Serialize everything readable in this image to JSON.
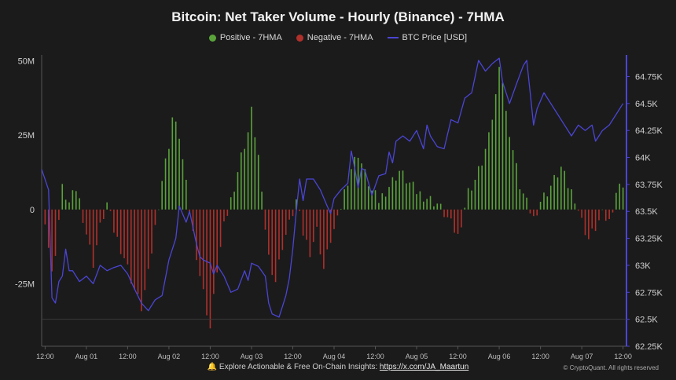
{
  "chart_data": {
    "type": "bar",
    "title": "Bitcoin: Net Taker Volume - Hourly (Binance) - 7HMA",
    "y_left_ticks": [
      "50M",
      "25M",
      "0",
      "-25M"
    ],
    "y_left_tick_values": [
      50000000,
      25000000,
      0,
      -25000000
    ],
    "y_right_ticks": [
      "64.75K",
      "64.5K",
      "64.25K",
      "64K",
      "63.75K",
      "63.5K",
      "63.25K",
      "63K",
      "62.75K",
      "62.5K",
      "62.25K"
    ],
    "y_right_tick_values": [
      64750,
      64500,
      64250,
      64000,
      63750,
      63500,
      63250,
      63000,
      62750,
      62500,
      62250
    ],
    "x_ticks": [
      "12:00",
      "Aug 01",
      "12:00",
      "Aug 02",
      "12:00",
      "Aug 03",
      "12:00",
      "Aug 04",
      "12:00",
      "Aug 05",
      "12:00",
      "Aug 06",
      "12:00",
      "Aug 07",
      "12:00"
    ],
    "x_tick_hours": [
      0,
      12,
      24,
      36,
      48,
      60,
      72,
      84,
      96,
      108,
      120,
      132,
      144,
      156,
      168
    ],
    "x_range_hours": [
      -1,
      169
    ],
    "ylim_left": [
      -46000000,
      52000000
    ],
    "ylim_right": [
      62250,
      64950
    ],
    "grid": false,
    "legend_position": "top-center",
    "series": [
      {
        "name": "Positive - 7HMA",
        "color": "#5aa33b"
      },
      {
        "name": "Negative - 7HMA",
        "color": "#b0302b"
      },
      {
        "name": "BTC Price [USD]",
        "color": "#4b45d6"
      }
    ],
    "net_volume_keypoints": [
      [
        0,
        -3000000
      ],
      [
        2,
        -22000000
      ],
      [
        3,
        -14000000
      ],
      [
        5,
        7000000
      ],
      [
        7,
        2000000
      ],
      [
        9,
        7000000
      ],
      [
        10,
        3000000
      ],
      [
        12,
        -8000000
      ],
      [
        14,
        -18000000
      ],
      [
        16,
        -6000000
      ],
      [
        18,
        2000000
      ],
      [
        20,
        -7000000
      ],
      [
        23,
        -16000000
      ],
      [
        26,
        -27000000
      ],
      [
        28,
        -33000000
      ],
      [
        30,
        -22000000
      ],
      [
        32,
        -6000000
      ],
      [
        34,
        10000000
      ],
      [
        36,
        22000000
      ],
      [
        37,
        31000000
      ],
      [
        39,
        25000000
      ],
      [
        41,
        8000000
      ],
      [
        43,
        -8000000
      ],
      [
        45,
        -22000000
      ],
      [
        47,
        -34000000
      ],
      [
        48,
        -40000000
      ],
      [
        50,
        -20000000
      ],
      [
        52,
        -6000000
      ],
      [
        55,
        8000000
      ],
      [
        57,
        18000000
      ],
      [
        59,
        26000000
      ],
      [
        60,
        33000000
      ],
      [
        62,
        18000000
      ],
      [
        63,
        4000000
      ],
      [
        65,
        -16000000
      ],
      [
        67,
        -24000000
      ],
      [
        69,
        -12000000
      ],
      [
        71,
        -5000000
      ],
      [
        73,
        3000000
      ],
      [
        75,
        -8000000
      ],
      [
        77,
        -14000000
      ],
      [
        79,
        -7000000
      ],
      [
        81,
        -20000000
      ],
      [
        83,
        -10000000
      ],
      [
        85,
        -4000000
      ],
      [
        87,
        6000000
      ],
      [
        89,
        14000000
      ],
      [
        91,
        19000000
      ],
      [
        93,
        12000000
      ],
      [
        95,
        6000000
      ],
      [
        97,
        3000000
      ],
      [
        100,
        8000000
      ],
      [
        103,
        13000000
      ],
      [
        105,
        10000000
      ],
      [
        108,
        6000000
      ],
      [
        111,
        4000000
      ],
      [
        114,
        2000000
      ],
      [
        117,
        -3000000
      ],
      [
        120,
        -9000000
      ],
      [
        123,
        6000000
      ],
      [
        125,
        10000000
      ],
      [
        127,
        16000000
      ],
      [
        129,
        24000000
      ],
      [
        131,
        38000000
      ],
      [
        132,
        50000000
      ],
      [
        133,
        43000000
      ],
      [
        134,
        32000000
      ],
      [
        136,
        20000000
      ],
      [
        138,
        8000000
      ],
      [
        140,
        2000000
      ],
      [
        142,
        -3000000
      ],
      [
        144,
        3000000
      ],
      [
        146,
        6000000
      ],
      [
        148,
        10000000
      ],
      [
        150,
        14000000
      ],
      [
        152,
        8000000
      ],
      [
        154,
        4000000
      ],
      [
        156,
        -4000000
      ],
      [
        158,
        -10000000
      ],
      [
        160,
        -6000000
      ],
      [
        162,
        -2000000
      ],
      [
        164,
        -4000000
      ],
      [
        166,
        6000000
      ],
      [
        168,
        9000000
      ]
    ],
    "btc_price_keypoints": [
      [
        -1,
        63890
      ],
      [
        1,
        63700
      ],
      [
        2,
        62700
      ],
      [
        3,
        62650
      ],
      [
        4,
        62850
      ],
      [
        5,
        62900
      ],
      [
        6,
        63150
      ],
      [
        7,
        62950
      ],
      [
        8,
        62950
      ],
      [
        10,
        62850
      ],
      [
        12,
        62900
      ],
      [
        14,
        62830
      ],
      [
        16,
        63000
      ],
      [
        18,
        62950
      ],
      [
        20,
        62980
      ],
      [
        22,
        63000
      ],
      [
        24,
        62920
      ],
      [
        26,
        62780
      ],
      [
        28,
        62650
      ],
      [
        30,
        62580
      ],
      [
        32,
        62680
      ],
      [
        34,
        62720
      ],
      [
        36,
        63050
      ],
      [
        38,
        63250
      ],
      [
        39,
        63550
      ],
      [
        41,
        63400
      ],
      [
        42,
        63500
      ],
      [
        44,
        63200
      ],
      [
        45,
        63080
      ],
      [
        46,
        63050
      ],
      [
        48,
        63020
      ],
      [
        49,
        62920
      ],
      [
        50,
        63000
      ],
      [
        52,
        62900
      ],
      [
        54,
        62750
      ],
      [
        56,
        62780
      ],
      [
        58,
        62950
      ],
      [
        59,
        62860
      ],
      [
        60,
        63020
      ],
      [
        62,
        62990
      ],
      [
        64,
        62900
      ],
      [
        65,
        62650
      ],
      [
        66,
        62550
      ],
      [
        68,
        62520
      ],
      [
        69,
        62620
      ],
      [
        70,
        62720
      ],
      [
        71,
        62880
      ],
      [
        72,
        63150
      ],
      [
        73,
        63500
      ],
      [
        74,
        63800
      ],
      [
        75,
        63600
      ],
      [
        76,
        63800
      ],
      [
        78,
        63800
      ],
      [
        80,
        63700
      ],
      [
        82,
        63550
      ],
      [
        83,
        63480
      ],
      [
        84,
        63620
      ],
      [
        86,
        63700
      ],
      [
        88,
        63760
      ],
      [
        89,
        64060
      ],
      [
        90,
        63900
      ],
      [
        91,
        63720
      ],
      [
        92,
        63900
      ],
      [
        93,
        63880
      ],
      [
        95,
        63650
      ],
      [
        97,
        63830
      ],
      [
        99,
        63850
      ],
      [
        100,
        64050
      ],
      [
        101,
        63950
      ],
      [
        102,
        64150
      ],
      [
        104,
        64200
      ],
      [
        106,
        64150
      ],
      [
        108,
        64250
      ],
      [
        110,
        64080
      ],
      [
        111,
        64300
      ],
      [
        112,
        64200
      ],
      [
        114,
        64100
      ],
      [
        116,
        64080
      ],
      [
        118,
        64350
      ],
      [
        120,
        64320
      ],
      [
        122,
        64550
      ],
      [
        124,
        64600
      ],
      [
        126,
        64900
      ],
      [
        128,
        64800
      ],
      [
        130,
        64870
      ],
      [
        132,
        64920
      ],
      [
        133,
        64700
      ],
      [
        134,
        64600
      ],
      [
        135,
        64500
      ],
      [
        137,
        64680
      ],
      [
        139,
        64850
      ],
      [
        140,
        64900
      ],
      [
        141,
        64600
      ],
      [
        142,
        64300
      ],
      [
        143,
        64450
      ],
      [
        145,
        64600
      ],
      [
        147,
        64500
      ],
      [
        149,
        64400
      ],
      [
        151,
        64300
      ],
      [
        153,
        64200
      ],
      [
        155,
        64300
      ],
      [
        157,
        64250
      ],
      [
        159,
        64300
      ],
      [
        160,
        64150
      ],
      [
        162,
        64250
      ],
      [
        164,
        64300
      ],
      [
        166,
        64400
      ],
      [
        168,
        64500
      ]
    ]
  },
  "legend": {
    "positive": "Positive - 7HMA",
    "negative": "Negative - 7HMA",
    "price": "BTC Price [USD]"
  },
  "footer": {
    "text": "Explore Actionable & Free On-Chain Insights:",
    "link": "https://x.com/JA_Maartun",
    "copyright": "© CryptoQuant. All rights reserved"
  }
}
